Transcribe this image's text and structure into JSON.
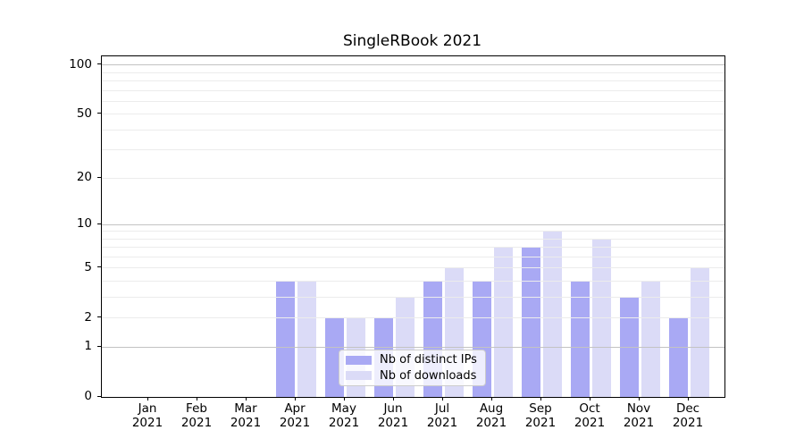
{
  "chart_data": {
    "type": "bar",
    "title": "SingleRBook 2021",
    "year_label": "2021",
    "categories": [
      "Jan",
      "Feb",
      "Mar",
      "Apr",
      "May",
      "Jun",
      "Jul",
      "Aug",
      "Sep",
      "Oct",
      "Nov",
      "Dec"
    ],
    "series": [
      {
        "name": "Nb of distinct IPs",
        "color": "#a9a9f4",
        "values": [
          0,
          0,
          0,
          4,
          2,
          2,
          4,
          4,
          7,
          4,
          3,
          2
        ]
      },
      {
        "name": "Nb of downloads",
        "color": "#dbdbf7",
        "values": [
          0,
          0,
          0,
          4,
          2,
          3,
          5,
          7,
          9,
          8,
          4,
          5
        ]
      }
    ],
    "xlabel": "",
    "ylabel": "",
    "yscale": "log1p",
    "ylim": [
      0,
      113
    ],
    "ytick_values": [
      0,
      1,
      2,
      5,
      10,
      20,
      50,
      100
    ],
    "ytick_labels": [
      "0",
      "1",
      "2",
      "5",
      "10",
      "20",
      "50",
      "100"
    ],
    "major_gridlines": [
      1,
      10,
      100
    ],
    "minor_gridlines": [
      2,
      3,
      4,
      5,
      6,
      7,
      8,
      9,
      20,
      30,
      40,
      50,
      60,
      70,
      80,
      90
    ],
    "grid": "on",
    "legend_position": "lower center",
    "legend_entries": [
      "Nb of distinct IPs",
      "Nb of downloads"
    ]
  }
}
